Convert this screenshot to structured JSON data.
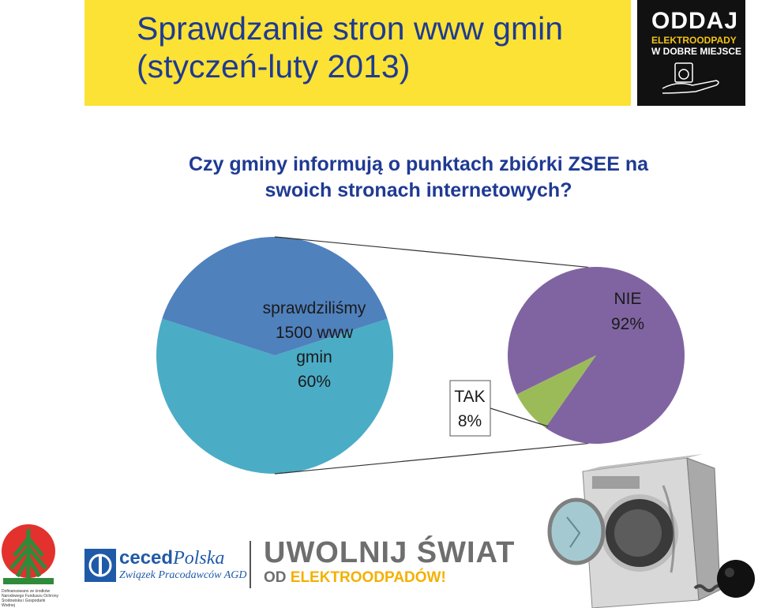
{
  "header": {
    "title_line1": "Sprawdzanie stron www gmin",
    "title_line2": "(styczeń-luty 2013)"
  },
  "logo_oddaj": {
    "line1": "ODDAJ",
    "line2": "ELEKTROODPADY",
    "line3": "W DOBRE MIEJSCE"
  },
  "subtitle": {
    "line1": "Czy gminy informują o punktach zbiórki ZSEE na",
    "line2": "swoich stronach internetowych?"
  },
  "chart_data": [
    {
      "type": "pie",
      "slices": [
        {
          "label": "sprawdziliśmy 1500 www gmin",
          "value": 60,
          "color": "#4bacc6"
        },
        {
          "label": "",
          "value": 40,
          "color": "#4f81bd"
        }
      ],
      "data_labels": [
        "sprawdziliśmy",
        "1500 www",
        "gmin",
        "60%"
      ]
    },
    {
      "type": "pie",
      "slices": [
        {
          "label": "TAK",
          "value": 8,
          "color": "#9bbb59"
        },
        {
          "label": "NIE",
          "value": 92,
          "color": "#8064a2"
        }
      ],
      "data_labels": {
        "tak": [
          "TAK",
          "8%"
        ],
        "nie": [
          "NIE",
          "92%"
        ]
      }
    }
  ],
  "footer": {
    "nfos_text": "Dofinansowano ze środków Narodowego Funduszu Ochrony Środowiska i Gospodarki Wodnej",
    "ceced_name_bold": "ceced",
    "ceced_name_italic": "Polska",
    "ceced_sub": "Związek Pracodawców AGD",
    "campaign_big": "UWOLNIJ ŚWIAT",
    "campaign_small_prefix": "OD ",
    "campaign_small_highlight": "ELEKTROODPADÓW!"
  },
  "icons": [
    "nfos-tree-logo",
    "ceced-logo-mark",
    "washing-machine-illustration",
    "ball-and-chain-icon",
    "hand-with-washer-icon"
  ]
}
